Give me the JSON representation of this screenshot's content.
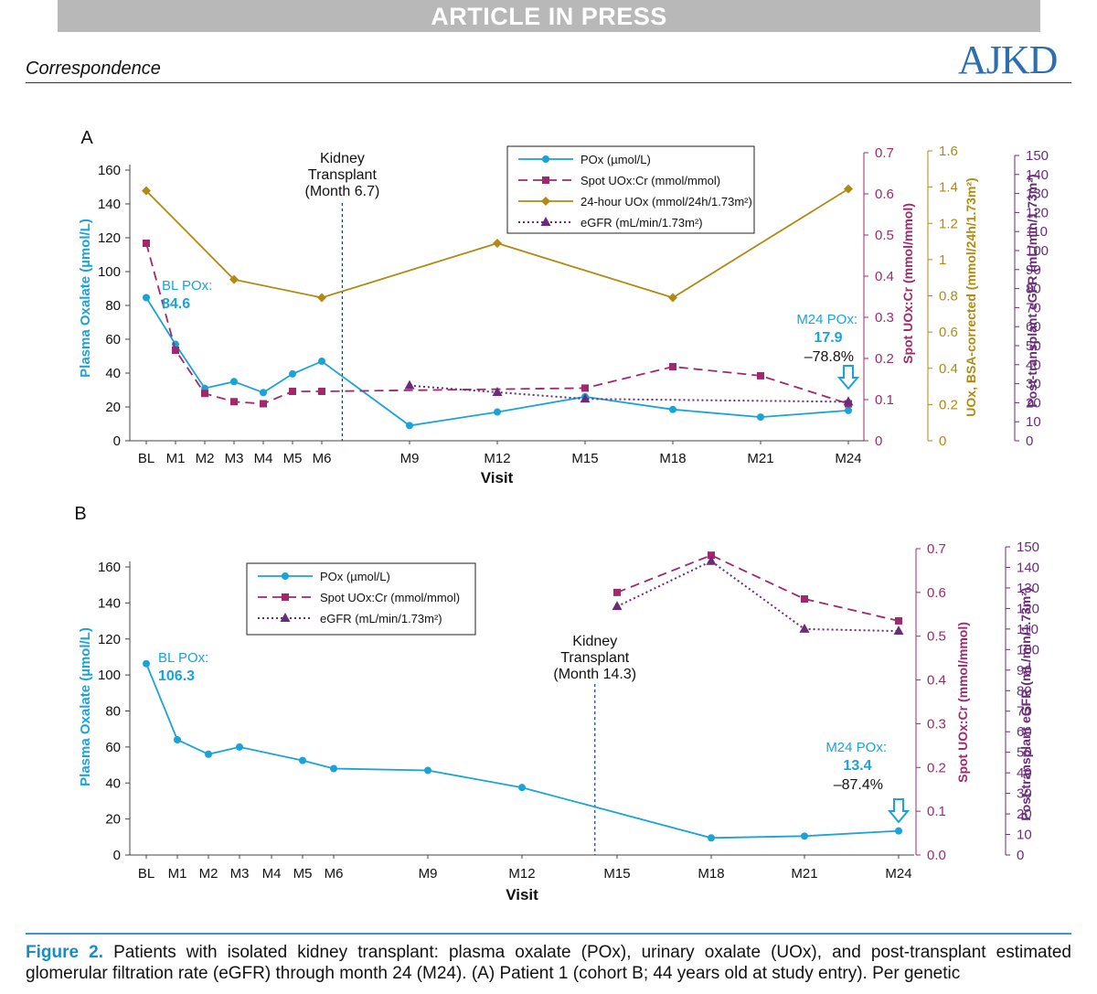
{
  "banner": "ARTICLE IN PRESS",
  "section": "Correspondence",
  "journal": "AJKD",
  "caption": {
    "label": "Figure 2.",
    "text": "Patients with isolated kidney transplant: plasma oxalate (POx), urinary oxalate (UOx), and post-transplant estimated glomerular filtration rate (eGFR) through month 24 (M24). (A) Patient 1 (cohort B; 44 years old at study entry). Per genetic"
  },
  "colors": {
    "pox": "#1aa3d8",
    "spot": "#a3286b",
    "uox24": "#b08a12",
    "egfr": "#6a2c7a"
  },
  "chart_data": [
    {
      "type": "line",
      "panel": "A",
      "xlabel": "Visit",
      "categories": [
        "BL",
        "M1",
        "M2",
        "M3",
        "M4",
        "M5",
        "M6",
        "M9",
        "M12",
        "M15",
        "M18",
        "M21",
        "M24"
      ],
      "x_months": [
        0,
        1,
        2,
        3,
        4,
        5,
        6,
        9,
        12,
        15,
        18,
        21,
        24
      ],
      "axes": {
        "left": {
          "label": "Plasma Oxalate (µmol/L)",
          "ylim": [
            0,
            160
          ],
          "ticks": [
            "0",
            "20",
            "40",
            "60",
            "80",
            "100",
            "120",
            "140",
            "160"
          ]
        },
        "right1": {
          "label": "Spot UOx:Cr (mmol/mmol)",
          "ylim": [
            0,
            0.7
          ],
          "ticks": [
            "0",
            "0.1",
            "0.2",
            "0.3",
            "0.4",
            "0.5",
            "0.6",
            "0.7"
          ]
        },
        "right2": {
          "label": "UOx, BSA-corrected (mmol/24h/1.73m²)",
          "ylim": [
            0,
            1.6
          ],
          "ticks": [
            "0",
            "0.2",
            "0.4",
            "0.6",
            "0.8",
            "1",
            "1.2",
            "1.4",
            "1.6"
          ]
        },
        "right3": {
          "label": "Post-transplant eGFR (mL/min/1.73m²)",
          "ylim": [
            0,
            150
          ],
          "ticks": [
            "0",
            "10",
            "20",
            "30",
            "40",
            "50",
            "60",
            "70",
            "80",
            "90",
            "100",
            "110",
            "120",
            "130",
            "140",
            "150"
          ]
        }
      },
      "series": [
        {
          "name": "POx (µmol/L)",
          "axis": "left",
          "x": [
            0,
            1,
            2,
            3,
            4,
            5,
            6,
            9,
            12,
            15,
            18,
            21,
            24
          ],
          "values": [
            84.6,
            57,
            31,
            35,
            28.5,
            39.5,
            47,
            9,
            17,
            26,
            18.5,
            14,
            17.9
          ]
        },
        {
          "name": "Spot UOx:Cr (mmol/mmol)",
          "axis": "right1",
          "x": [
            0,
            1,
            2,
            3,
            4,
            5,
            6,
            15,
            18,
            21,
            24
          ],
          "values": [
            0.48,
            0.22,
            0.115,
            0.095,
            0.09,
            0.12,
            0.12,
            0.128,
            0.18,
            0.158,
            0.09
          ]
        },
        {
          "name": "24-hour UOx (mmol/24h/1.73m²)",
          "axis": "right2",
          "x": [
            0,
            3,
            6,
            12,
            18,
            24
          ],
          "values": [
            1.38,
            0.89,
            0.79,
            1.09,
            0.79,
            1.39
          ]
        },
        {
          "name": "eGFR (mL/min/1.73m²)",
          "axis": "right3",
          "x": [
            9,
            12,
            15,
            24
          ],
          "values": [
            29,
            25.5,
            22,
            20.5
          ]
        }
      ],
      "annotations": {
        "transplant": [
          "Kidney",
          "Transplant",
          "(Month 6.7)"
        ],
        "transplant_month": 6.7,
        "bl_label": "BL POx:",
        "bl_value": "84.6",
        "m24_label": "M24 POx:",
        "m24_value": "17.9",
        "m24_change": "–78.8%"
      },
      "panel_label": "A"
    },
    {
      "type": "line",
      "panel": "B",
      "xlabel": "Visit",
      "categories": [
        "BL",
        "M1",
        "M2",
        "M3",
        "M4",
        "M5",
        "M6",
        "M9",
        "M12",
        "M15",
        "M18",
        "M21",
        "M24"
      ],
      "x_months": [
        0,
        1,
        2,
        3,
        4,
        5,
        6,
        9,
        12,
        15,
        18,
        21,
        24
      ],
      "axes": {
        "left": {
          "label": "Plasma Oxalate (µmol/L)",
          "ylim": [
            0,
            160
          ],
          "ticks": [
            "0",
            "20",
            "40",
            "60",
            "80",
            "100",
            "120",
            "140",
            "160"
          ]
        },
        "right1": {
          "label": "Spot UOx:Cr (mmol/mmol)",
          "ylim": [
            0,
            0.7
          ],
          "ticks": [
            "0.0",
            "0.1",
            "0.2",
            "0.3",
            "0.4",
            "0.5",
            "0.6",
            "0.7"
          ]
        },
        "right3": {
          "label": "Post-transplant eGFR (mL/min/1.73m²)",
          "ylim": [
            0,
            150
          ],
          "ticks": [
            "0",
            "10",
            "20",
            "30",
            "40",
            "50",
            "60",
            "70",
            "80",
            "90",
            "100",
            "110",
            "120",
            "130",
            "140",
            "150"
          ]
        }
      },
      "series": [
        {
          "name": "POx (µmol/L)",
          "axis": "left",
          "x": [
            0,
            1,
            2,
            3,
            5,
            6,
            9,
            12,
            18,
            21,
            24
          ],
          "values": [
            106.3,
            64,
            56,
            60,
            52.5,
            48,
            47,
            37.5,
            9.5,
            10.5,
            13.4
          ]
        },
        {
          "name": "Spot UOx:Cr (mmol/mmol)",
          "axis": "right1",
          "x": [
            15,
            18,
            21,
            24
          ],
          "values": [
            0.6,
            0.685,
            0.585,
            0.535
          ]
        },
        {
          "name": "eGFR (mL/min/1.73m²)",
          "axis": "right3",
          "x": [
            15,
            18,
            21,
            24
          ],
          "values": [
            121,
            143,
            110,
            109
          ]
        }
      ],
      "annotations": {
        "transplant": [
          "Kidney",
          "Transplant",
          "(Month 14.3)"
        ],
        "transplant_month": 14.3,
        "bl_label": "BL POx:",
        "bl_value": "106.3",
        "m24_label": "M24 POx:",
        "m24_value": "13.4",
        "m24_change": "–87.4%"
      },
      "panel_label": "B"
    }
  ]
}
